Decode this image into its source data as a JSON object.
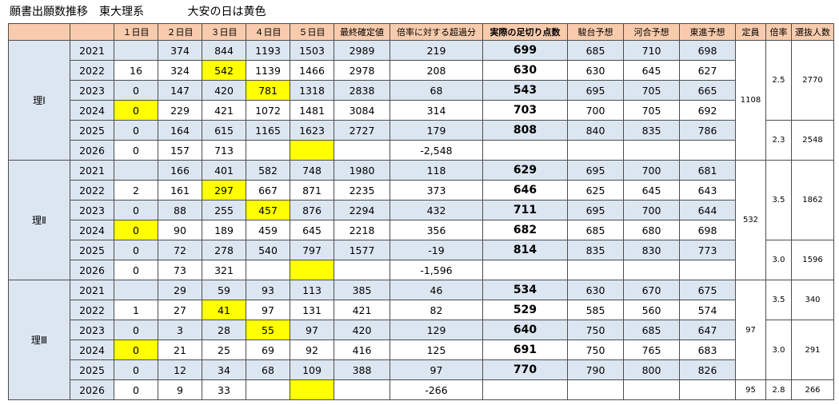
{
  "title": "願書出願数推移　東大理系",
  "note": "大安の日は黄色",
  "colors": {
    "header_bg": "#f8cbad",
    "band_bg": "#dce6f1",
    "highlight": "#ffff00"
  },
  "headers": [
    "",
    "",
    "１日目",
    "２日目",
    "３日目",
    "４日目",
    "５日目",
    "最終確定値",
    "倍率に対する超過分",
    "実際の足切り点数",
    "駿台予想",
    "河合予想",
    "東進予想",
    "定員",
    "倍率",
    "選抜人数"
  ],
  "groups": [
    {
      "label": "理Ⅰ",
      "rows": [
        {
          "year": "2021",
          "d1": "",
          "d2": "374",
          "d3": "844",
          "d4": "1193",
          "d5": "1503",
          "final": "2989",
          "excess": "219",
          "cutoff": "699",
          "sundai": "685",
          "kawai": "710",
          "toshin": "698"
        },
        {
          "year": "2022",
          "d1": "16",
          "d2": "324",
          "d3": "542",
          "d4": "1139",
          "d5": "1466",
          "final": "2978",
          "excess": "208",
          "cutoff": "630",
          "sundai": "630",
          "kawai": "645",
          "toshin": "627"
        },
        {
          "year": "2023",
          "d1": "0",
          "d2": "147",
          "d3": "420",
          "d4": "781",
          "d5": "1318",
          "final": "2838",
          "excess": "68",
          "cutoff": "543",
          "sundai": "695",
          "kawai": "705",
          "toshin": "665"
        },
        {
          "year": "2024",
          "d1": "0",
          "d2": "229",
          "d3": "421",
          "d4": "1072",
          "d5": "1481",
          "final": "3084",
          "excess": "314",
          "cutoff": "703",
          "sundai": "700",
          "kawai": "705",
          "toshin": "692"
        },
        {
          "year": "2025",
          "d1": "0",
          "d2": "164",
          "d3": "615",
          "d4": "1165",
          "d5": "1623",
          "final": "2727",
          "excess": "179",
          "cutoff": "808",
          "sundai": "840",
          "kawai": "835",
          "toshin": "786"
        },
        {
          "year": "2026",
          "d1": "0",
          "d2": "157",
          "d3": "713",
          "d4": "",
          "d5": "",
          "final": "",
          "excess": "-2,548",
          "cutoff": "",
          "sundai": "",
          "kawai": "",
          "toshin": ""
        }
      ],
      "capacity": "1108",
      "ratios": [
        {
          "ratio": "2.5",
          "selected": "2770"
        },
        {
          "ratio": "2.3",
          "selected": "2548"
        }
      ]
    },
    {
      "label": "理Ⅱ",
      "rows": [
        {
          "year": "2021",
          "d1": "",
          "d2": "166",
          "d3": "401",
          "d4": "582",
          "d5": "748",
          "final": "1980",
          "excess": "118",
          "cutoff": "629",
          "sundai": "695",
          "kawai": "700",
          "toshin": "681"
        },
        {
          "year": "2022",
          "d1": "2",
          "d2": "161",
          "d3": "297",
          "d4": "667",
          "d5": "871",
          "final": "2235",
          "excess": "373",
          "cutoff": "646",
          "sundai": "625",
          "kawai": "645",
          "toshin": "643"
        },
        {
          "year": "2023",
          "d1": "0",
          "d2": "88",
          "d3": "255",
          "d4": "457",
          "d5": "876",
          "final": "2294",
          "excess": "432",
          "cutoff": "711",
          "sundai": "695",
          "kawai": "700",
          "toshin": "644"
        },
        {
          "year": "2024",
          "d1": "0",
          "d2": "90",
          "d3": "189",
          "d4": "459",
          "d5": "645",
          "final": "2218",
          "excess": "356",
          "cutoff": "682",
          "sundai": "685",
          "kawai": "680",
          "toshin": "698"
        },
        {
          "year": "2025",
          "d1": "0",
          "d2": "72",
          "d3": "278",
          "d4": "540",
          "d5": "797",
          "final": "1577",
          "excess": "-19",
          "cutoff": "814",
          "sundai": "835",
          "kawai": "830",
          "toshin": "773"
        },
        {
          "year": "2026",
          "d1": "0",
          "d2": "73",
          "d3": "321",
          "d4": "",
          "d5": "",
          "final": "",
          "excess": "-1,596",
          "cutoff": "",
          "sundai": "",
          "kawai": "",
          "toshin": ""
        }
      ],
      "capacity": "532",
      "ratios": [
        {
          "ratio": "3.5",
          "selected": "1862"
        },
        {
          "ratio": "3.0",
          "selected": "1596"
        }
      ]
    },
    {
      "label": "理Ⅲ",
      "rows": [
        {
          "year": "2021",
          "d1": "",
          "d2": "29",
          "d3": "59",
          "d4": "93",
          "d5": "113",
          "final": "385",
          "excess": "46",
          "cutoff": "534",
          "sundai": "630",
          "kawai": "670",
          "toshin": "675"
        },
        {
          "year": "2022",
          "d1": "1",
          "d2": "27",
          "d3": "41",
          "d4": "97",
          "d5": "131",
          "final": "421",
          "excess": "82",
          "cutoff": "529",
          "sundai": "585",
          "kawai": "560",
          "toshin": "574"
        },
        {
          "year": "2023",
          "d1": "0",
          "d2": "3",
          "d3": "28",
          "d4": "55",
          "d5": "97",
          "final": "420",
          "excess": "129",
          "cutoff": "640",
          "sundai": "750",
          "kawai": "685",
          "toshin": "647"
        },
        {
          "year": "2024",
          "d1": "0",
          "d2": "21",
          "d3": "25",
          "d4": "69",
          "d5": "92",
          "final": "416",
          "excess": "125",
          "cutoff": "691",
          "sundai": "750",
          "kawai": "765",
          "toshin": "683"
        },
        {
          "year": "2025",
          "d1": "0",
          "d2": "12",
          "d3": "34",
          "d4": "68",
          "d5": "109",
          "final": "388",
          "excess": "97",
          "cutoff": "770",
          "sundai": "790",
          "kawai": "800",
          "toshin": "826"
        },
        {
          "year": "2026",
          "d1": "0",
          "d2": "9",
          "d3": "33",
          "d4": "",
          "d5": "",
          "final": "",
          "excess": "-266",
          "cutoff": "",
          "sundai": "",
          "kawai": "",
          "toshin": ""
        }
      ],
      "capacity": "97",
      "capacity_2026": "95",
      "ratios": [
        {
          "ratio": "3.5",
          "selected": "340"
        },
        {
          "ratio": "3.0",
          "selected": "291"
        },
        {
          "ratio": "2.8",
          "selected": "266"
        }
      ]
    }
  ]
}
